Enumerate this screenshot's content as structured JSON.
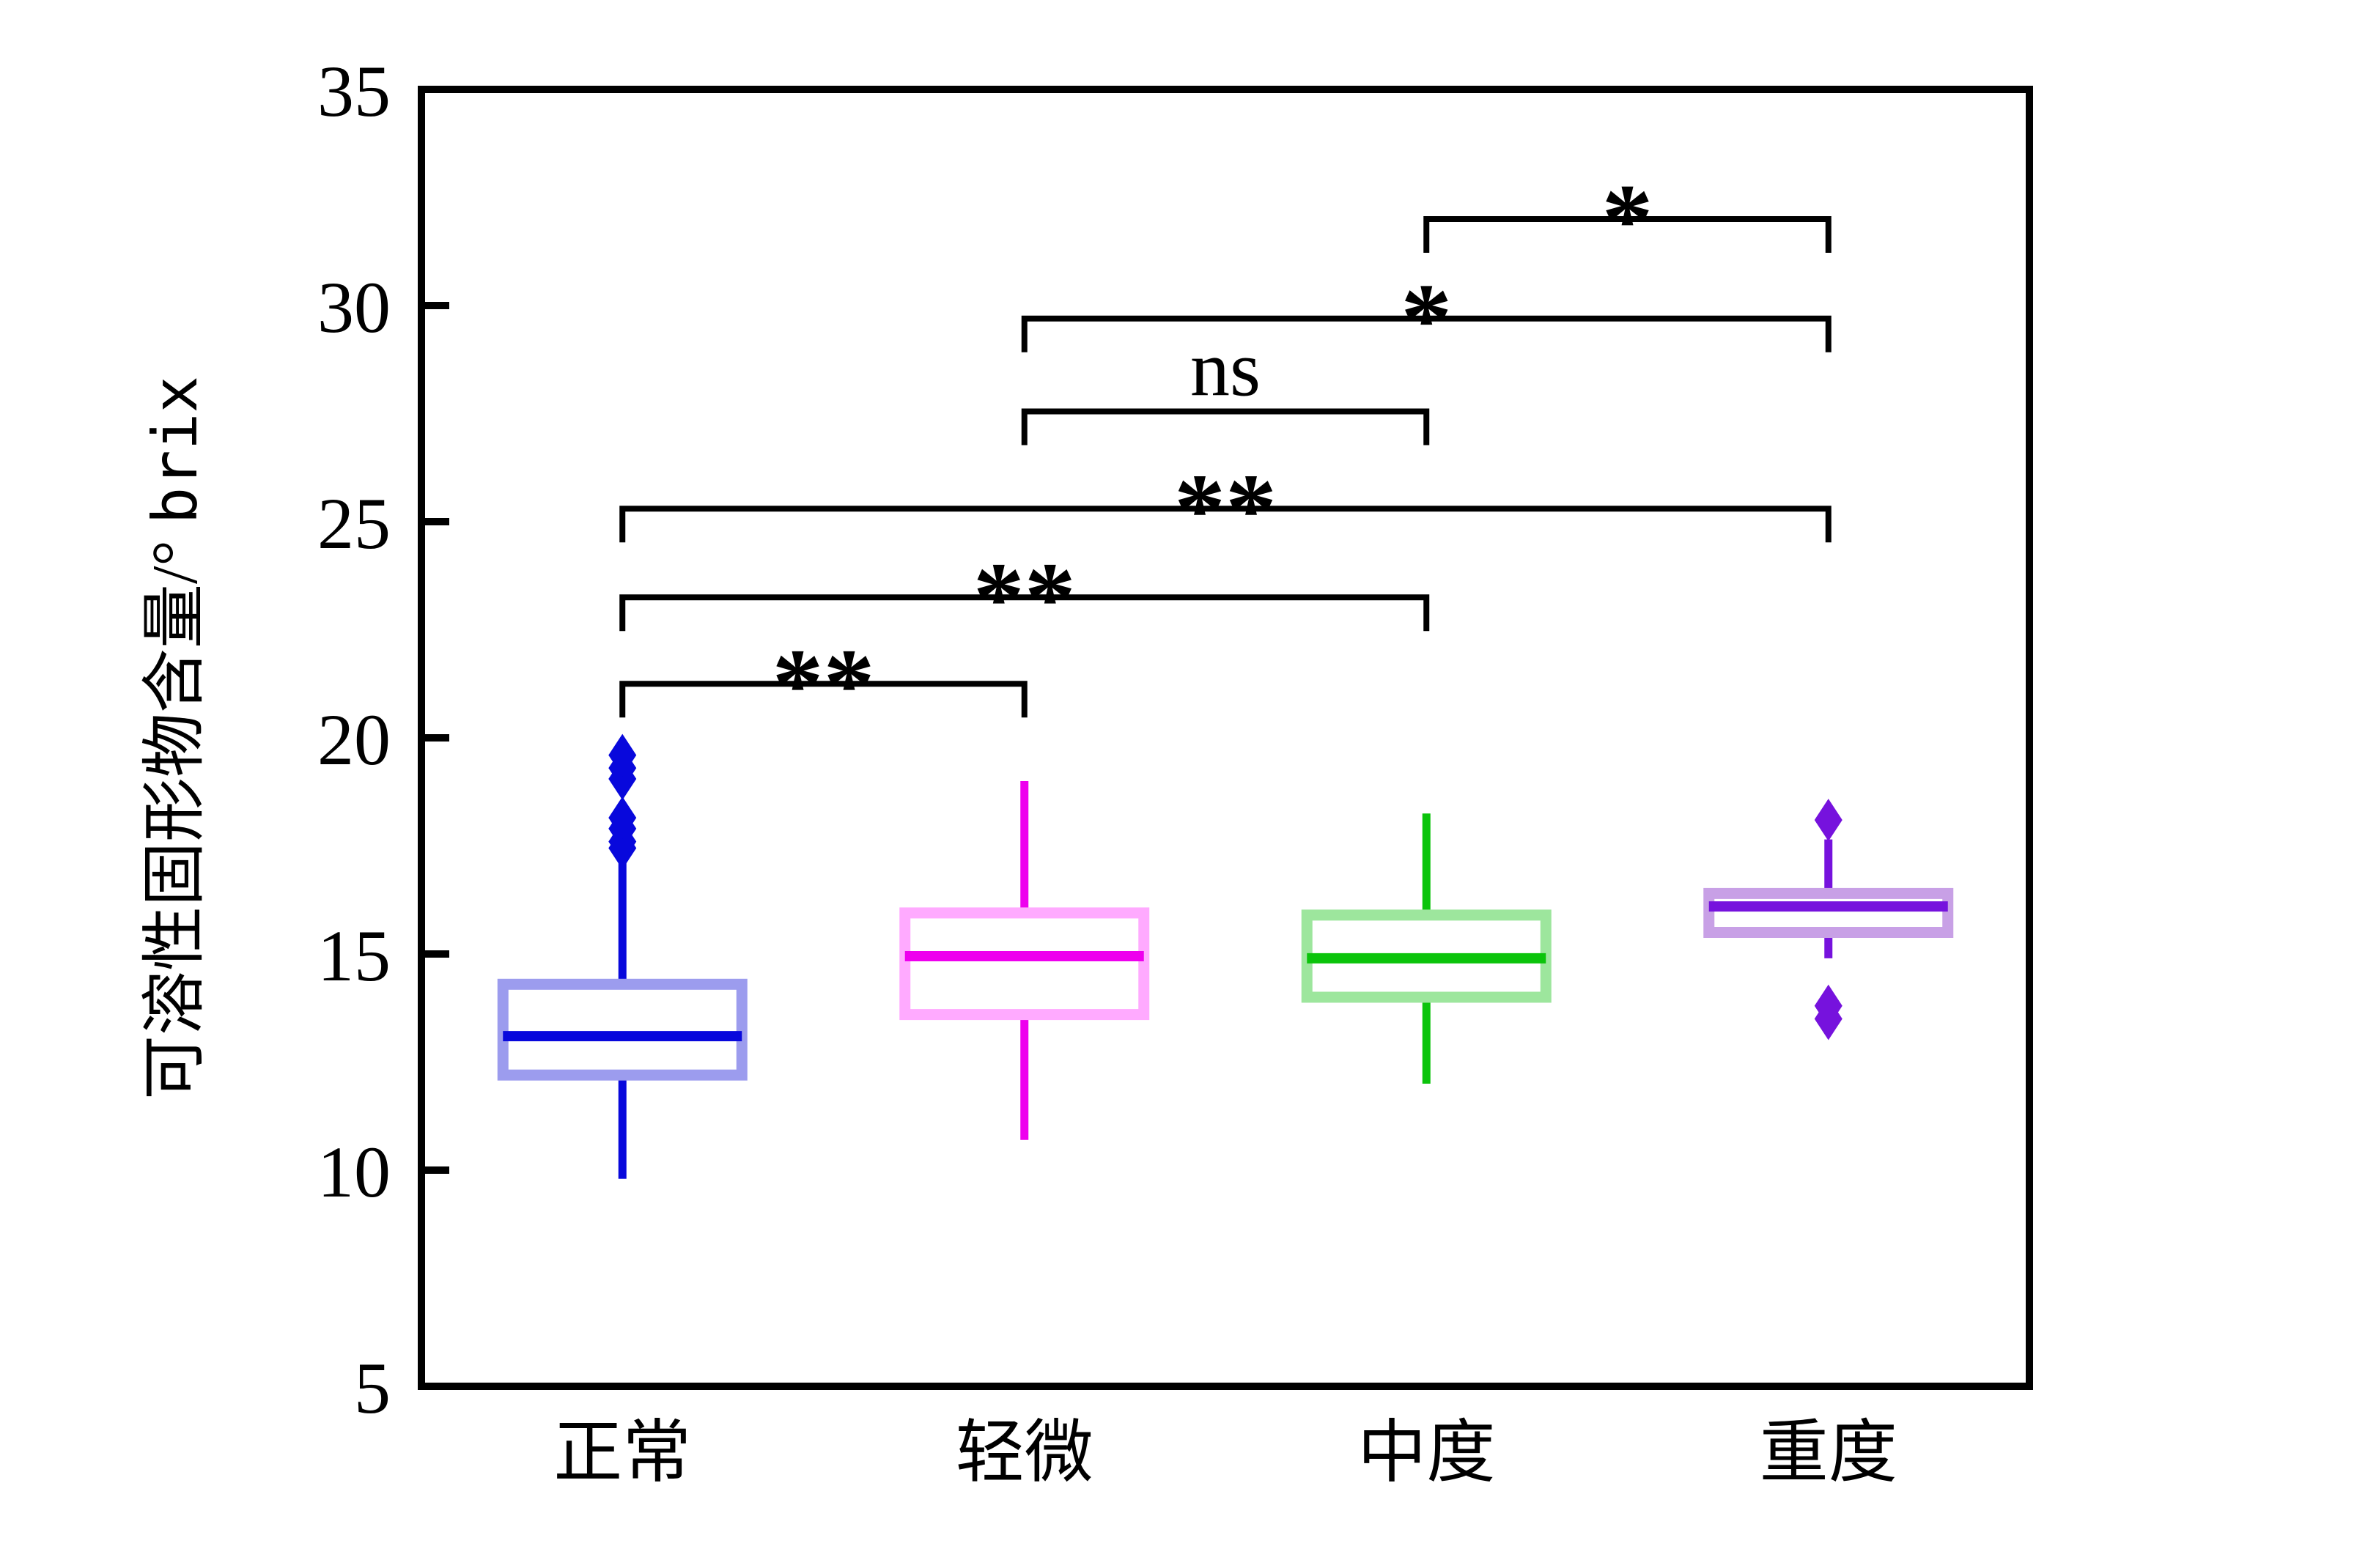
{
  "chart_data": {
    "type": "box",
    "title": "",
    "xlabel": "",
    "ylabel": {
      "text": "可溶性固形物含量/° brix",
      "prefix": "可溶性固形物含量/° ",
      "unit": "brix"
    },
    "ylim": [
      5,
      35
    ],
    "yticks": [
      5,
      10,
      15,
      20,
      25,
      30,
      35
    ],
    "grid": false,
    "legend": null,
    "frame_color": "#000000",
    "background_color": "#ffffff",
    "categories": [
      "正常",
      "轻微",
      "中度",
      "重度"
    ],
    "series": [
      {
        "name": "正常",
        "whisker_low": 9.8,
        "q1": 12.2,
        "median": 13.1,
        "q3": 14.3,
        "whisker_high": 17.2,
        "outliers": [
          17.45,
          17.6,
          17.9,
          18.15,
          19.05,
          19.3,
          19.6
        ],
        "line_color": "#0808dc",
        "box_edge_color": "#9c9cee"
      },
      {
        "name": "轻微",
        "whisker_low": 10.7,
        "q1": 13.6,
        "median": 14.95,
        "q3": 15.95,
        "whisker_high": 19.0,
        "outliers": [],
        "line_color": "#ee00ee",
        "box_edge_color": "#ffaaff"
      },
      {
        "name": "中度",
        "whisker_low": 12.0,
        "q1": 14.0,
        "median": 14.9,
        "q3": 15.9,
        "whisker_high": 18.25,
        "outliers": [],
        "line_color": "#0bc40b",
        "box_edge_color": "#9de69d"
      },
      {
        "name": "重度",
        "whisker_low": 14.9,
        "q1": 15.5,
        "median": 16.1,
        "q3": 16.4,
        "whisker_high": 17.65,
        "outliers": [
          18.1,
          13.8,
          13.5
        ],
        "line_color": "#7612dd",
        "box_edge_color": "#c8a0e6"
      }
    ],
    "significance_brackets": [
      {
        "from": "正常",
        "to": "轻微",
        "label": "**",
        "bar_y": 21.25
      },
      {
        "from": "正常",
        "to": "中度",
        "label": "**",
        "bar_y": 23.25
      },
      {
        "from": "正常",
        "to": "重度",
        "label": "**",
        "bar_y": 25.3
      },
      {
        "from": "轻微",
        "to": "中度",
        "label": "ns",
        "bar_y": 27.55
      },
      {
        "from": "轻微",
        "to": "重度",
        "label": "*",
        "bar_y": 29.7
      },
      {
        "from": "中度",
        "to": "重度",
        "label": "*",
        "bar_y": 32.0
      }
    ]
  }
}
